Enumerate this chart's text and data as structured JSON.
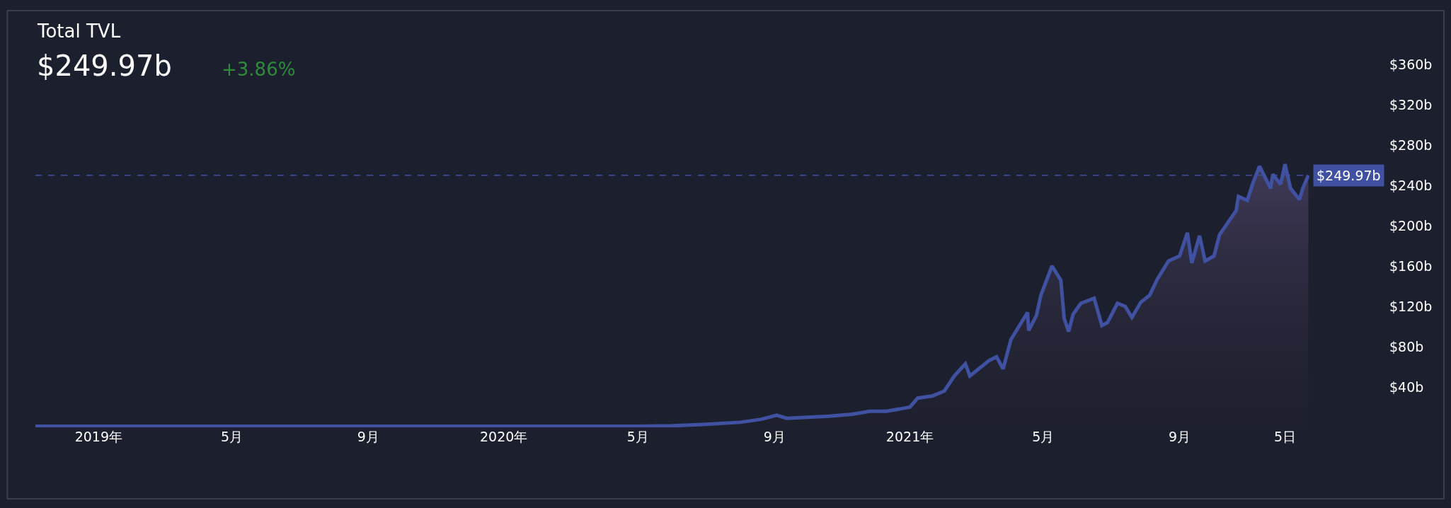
{
  "chart_data": {
    "type": "area",
    "title": "Total TVL",
    "subtitle": "$249.97b",
    "annotations": [
      "+3.86%"
    ],
    "xlim": [
      "2018-11-05",
      "2021-12-27"
    ],
    "xticks": [
      {
        "value": "2019-01-01",
        "label": "2019年"
      },
      {
        "value": "2019-05-01",
        "label": "5月"
      },
      {
        "value": "2019-09-01",
        "label": "9月"
      },
      {
        "value": "2020-01-01",
        "label": "2020年"
      },
      {
        "value": "2020-05-01",
        "label": "5月"
      },
      {
        "value": "2020-09-01",
        "label": "9月"
      },
      {
        "value": "2021-01-01",
        "label": "2021年"
      },
      {
        "value": "2021-05-01",
        "label": "5月"
      },
      {
        "value": "2021-09-01",
        "label": "9月"
      },
      {
        "value": "2021-12-05",
        "label": "5日"
      }
    ],
    "ylim": [
      0,
      360
    ],
    "yticks": [
      {
        "value": 40,
        "label": "$40b"
      },
      {
        "value": 80,
        "label": "$80b"
      },
      {
        "value": 120,
        "label": "$120b"
      },
      {
        "value": 160,
        "label": "$160b"
      },
      {
        "value": 200,
        "label": "$200b"
      },
      {
        "value": 240,
        "label": "$240b"
      },
      {
        "value": 280,
        "label": "$280b"
      },
      {
        "value": 320,
        "label": "$320b"
      },
      {
        "value": 360,
        "label": "$360b"
      }
    ],
    "ref_lines": [
      {
        "axis": "y",
        "value": 249.97,
        "label": "$249.97b",
        "color": "#3f51a0",
        "line_style": "dashed"
      }
    ],
    "grid": false,
    "x": [
      "2018-11-05",
      "2019-01-01",
      "2019-05-01",
      "2019-09-01",
      "2020-01-01",
      "2020-03-01",
      "2020-05-01",
      "2020-06-01",
      "2020-07-01",
      "2020-08-01",
      "2020-08-20",
      "2020-09-03",
      "2020-09-12",
      "2020-10-01",
      "2020-10-20",
      "2020-11-10",
      "2020-11-26",
      "2020-12-11",
      "2021-01-01",
      "2021-01-08",
      "2021-01-21",
      "2021-02-01",
      "2021-02-10",
      "2021-02-20",
      "2021-02-24",
      "2021-03-13",
      "2021-03-20",
      "2021-03-26",
      "2021-04-02",
      "2021-04-17",
      "2021-04-18",
      "2021-04-25",
      "2021-04-29",
      "2021-05-09",
      "2021-05-17",
      "2021-05-20",
      "2021-05-24",
      "2021-05-28",
      "2021-06-04",
      "2021-06-16",
      "2021-06-23",
      "2021-06-28",
      "2021-07-07",
      "2021-07-14",
      "2021-07-20",
      "2021-07-28",
      "2021-08-05",
      "2021-08-12",
      "2021-08-22",
      "2021-09-01",
      "2021-09-08",
      "2021-09-12",
      "2021-09-19",
      "2021-09-24",
      "2021-10-02",
      "2021-10-07",
      "2021-10-22",
      "2021-10-24",
      "2021-11-01",
      "2021-11-06",
      "2021-11-12",
      "2021-11-22",
      "2021-11-24",
      "2021-12-01",
      "2021-12-05",
      "2021-12-10",
      "2021-12-18",
      "2021-12-21",
      "2021-12-26"
    ],
    "series": [
      {
        "color": "#3f51a0",
        "values": [
          1,
          1,
          1,
          1,
          1,
          1,
          1,
          1.5,
          3,
          5,
          8,
          12,
          9,
          10,
          11,
          13,
          16,
          16,
          20,
          29,
          31,
          36,
          51,
          63,
          51,
          66,
          70,
          58,
          87,
          114,
          96,
          111,
          131,
          160,
          146,
          108,
          95,
          112,
          123,
          128,
          101,
          104,
          123,
          120,
          109,
          124,
          131,
          147,
          165,
          170,
          193,
          163,
          190,
          165,
          170,
          191,
          215,
          229,
          225,
          242,
          259,
          237,
          251,
          241,
          261,
          237,
          226,
          237,
          249.97
        ]
      }
    ]
  }
}
